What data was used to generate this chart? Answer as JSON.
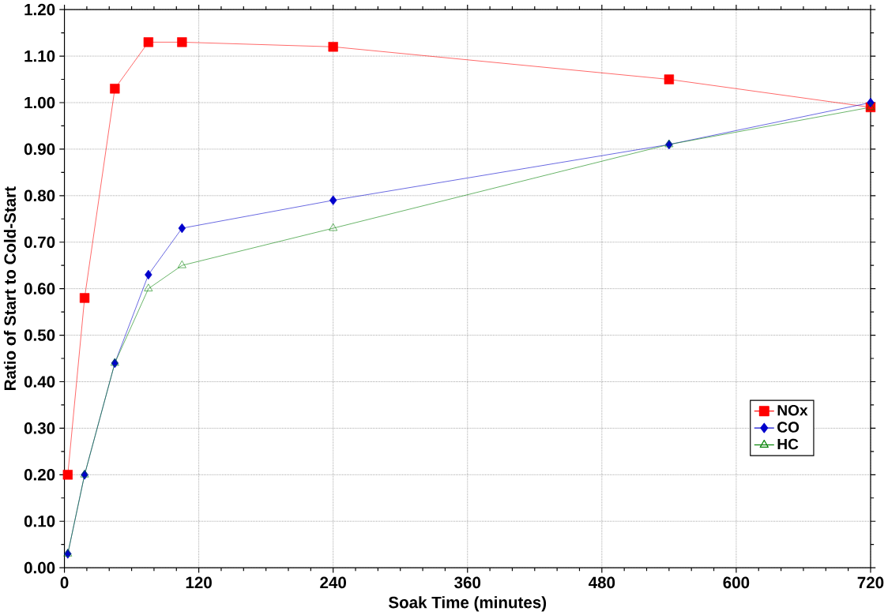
{
  "chart_data": {
    "type": "line",
    "xlabel": "Soak Time (minutes)",
    "ylabel": "Ratio of Start to Cold-Start",
    "x": [
      3,
      18,
      45,
      75,
      105,
      240,
      540,
      720
    ],
    "series": [
      {
        "name": "NOx",
        "color": "#ff0000",
        "marker": "square",
        "values": [
          0.2,
          0.58,
          1.03,
          1.13,
          1.13,
          1.12,
          1.05,
          0.99
        ]
      },
      {
        "name": "CO",
        "color": "#0000cc",
        "marker": "diamond",
        "values": [
          0.03,
          0.2,
          0.44,
          0.63,
          0.73,
          0.79,
          0.91,
          1.0
        ]
      },
      {
        "name": "HC",
        "color": "#008000",
        "marker": "triangle",
        "values": [
          0.03,
          0.2,
          0.44,
          0.6,
          0.65,
          0.73,
          0.91,
          0.99
        ]
      }
    ],
    "xlim": [
      0,
      720
    ],
    "xticks": [
      0,
      120,
      240,
      360,
      480,
      600,
      720
    ],
    "ylim": [
      0,
      1.2
    ],
    "yticks": [
      {
        "value": 0,
        "label": "0.00"
      },
      {
        "value": 0.1,
        "label": "0.10"
      },
      {
        "value": 0.2,
        "label": "0.20"
      },
      {
        "value": 0.3,
        "label": "0.30"
      },
      {
        "value": 0.4,
        "label": "0.40"
      },
      {
        "value": 0.5,
        "label": "0.50"
      },
      {
        "value": 0.6,
        "label": "0.60"
      },
      {
        "value": 0.7,
        "label": "0.70"
      },
      {
        "value": 0.8,
        "label": "0.80"
      },
      {
        "value": 0.9,
        "label": "0.90"
      },
      {
        "value": 1.0,
        "label": "1.00"
      },
      {
        "value": 1.1,
        "label": "1.10"
      },
      {
        "value": 1.2,
        "label": "1.20"
      }
    ],
    "grid": true,
    "legend": "right",
    "line_style": "solid"
  }
}
